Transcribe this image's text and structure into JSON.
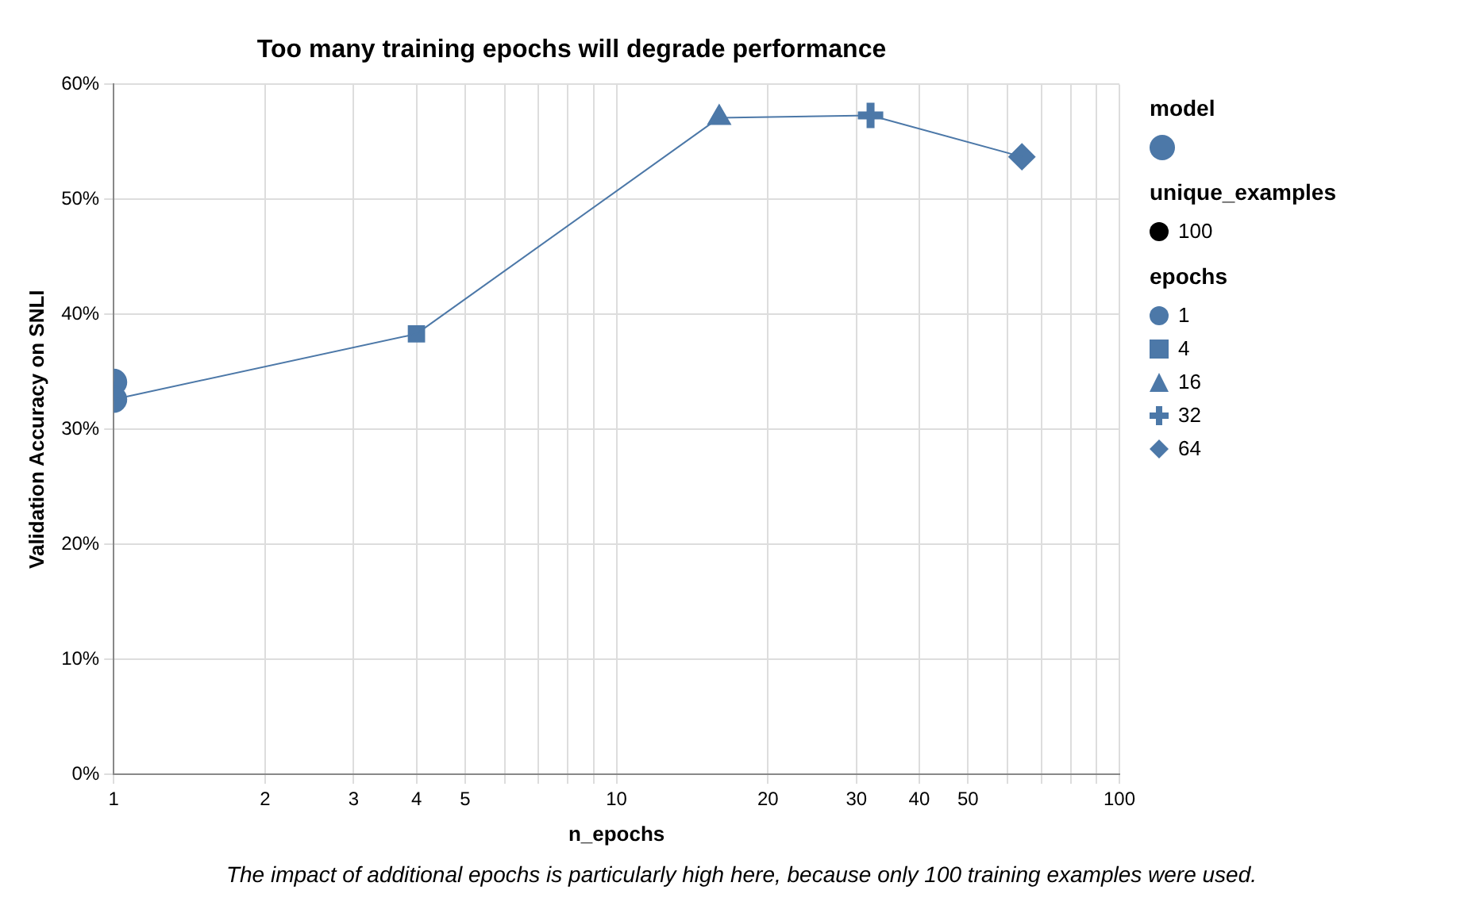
{
  "chart_data": {
    "type": "line",
    "title": "Too many training epochs will degrade performance",
    "xlabel": "n_epochs",
    "ylabel": "Validation Accuracy on SNLI",
    "log": "x",
    "xlim": [
      1,
      100
    ],
    "xticks": [
      1,
      2,
      3,
      4,
      5,
      {
        "value": 6,
        "label": null
      },
      {
        "value": 7,
        "label": null
      },
      {
        "value": 8,
        "label": null
      },
      {
        "value": 9,
        "label": null
      },
      10,
      20,
      30,
      40,
      50,
      {
        "value": 60,
        "label": null
      },
      {
        "value": 70,
        "label": null
      },
      {
        "value": 80,
        "label": null
      },
      {
        "value": 90,
        "label": null
      },
      100
    ],
    "ylim": [
      0,
      60
    ],
    "yticks": [
      {
        "value": 0,
        "label": "0%"
      },
      {
        "value": 10,
        "label": "10%"
      },
      {
        "value": 20,
        "label": "20%"
      },
      {
        "value": 30,
        "label": "30%"
      },
      {
        "value": 40,
        "label": "40%"
      },
      {
        "value": 50,
        "label": "50%"
      },
      {
        "value": 60,
        "label": "60%"
      }
    ],
    "grid": true,
    "legend": "top right",
    "legend_title": "epochs",
    "series": [
      {
        "type": "line",
        "color": "#4c78a8",
        "marker": "none",
        "x": [
          1,
          1,
          4,
          16,
          32,
          64
        ],
        "values": [
          34.1,
          32.6,
          38.3,
          57.1,
          57.3,
          53.7
        ]
      },
      {
        "type": "scatter",
        "name": "1",
        "color": "#4c78a8",
        "marker": "circle",
        "x": [
          1,
          1
        ],
        "values": [
          34.1,
          32.6
        ]
      },
      {
        "type": "scatter",
        "name": "4",
        "color": "#4c78a8",
        "marker": "square",
        "x": [
          4
        ],
        "values": [
          38.3
        ]
      },
      {
        "type": "scatter",
        "name": "16",
        "color": "#4c78a8",
        "marker": "triangle",
        "x": [
          16
        ],
        "values": [
          57.1
        ]
      },
      {
        "type": "scatter",
        "name": "32",
        "color": "#4c78a8",
        "marker": "cross",
        "x": [
          32
        ],
        "values": [
          57.3
        ]
      },
      {
        "type": "scatter",
        "name": "64",
        "color": "#4c78a8",
        "marker": "diamond",
        "x": [
          64
        ],
        "values": [
          53.7
        ]
      }
    ],
    "annotations": [
      "model",
      "unique_examples",
      "100",
      "The impact of additional epochs is particularly high here, because only 100 training examples were used."
    ]
  }
}
